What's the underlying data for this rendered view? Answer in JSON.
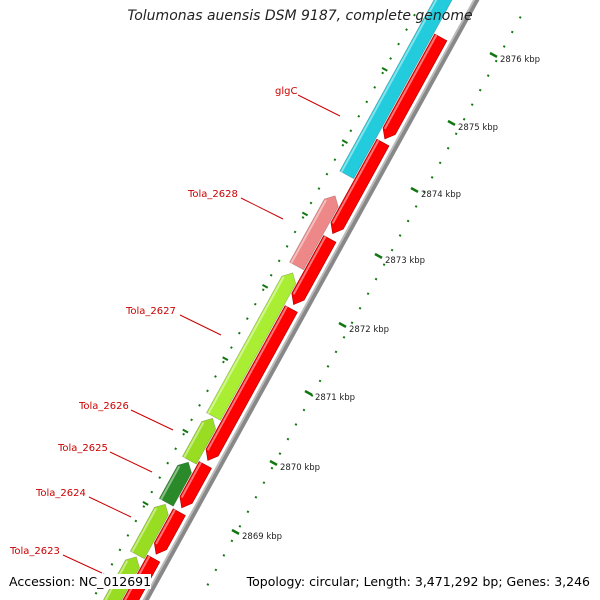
{
  "title": "Tolumonas auensis DSM 9187, complete genome",
  "accession": "Accession: NC_012691",
  "summary": "Topology: circular; Length: 3,471,292 bp; Genes: 3,246",
  "colors": {
    "cds_red": "#ff0000",
    "glgC": "#22ccdd",
    "tola2628": "#ee8888",
    "tola2627": "#aaee33",
    "tola2626": "#99dd22",
    "tola2625": "#2a8a2a",
    "tola2624": "#99dd22",
    "tola2623": "#99dd22",
    "tick": "#117711",
    "label_red": "#cc0000"
  },
  "ticks": [
    {
      "label": "2869 kbp"
    },
    {
      "label": "2870 kbp"
    },
    {
      "label": "2871 kbp"
    },
    {
      "label": "2872 kbp"
    },
    {
      "label": "2873 kbp"
    },
    {
      "label": "2874 kbp"
    },
    {
      "label": "2875 kbp"
    },
    {
      "label": "2876 kbp"
    }
  ],
  "gene_labels": [
    {
      "text": "glgC"
    },
    {
      "text": "Tola_2628"
    },
    {
      "text": "Tola_2627"
    },
    {
      "text": "Tola_2626"
    },
    {
      "text": "Tola_2625"
    },
    {
      "text": "Tola_2624"
    },
    {
      "text": "Tola_2623"
    }
  ]
}
